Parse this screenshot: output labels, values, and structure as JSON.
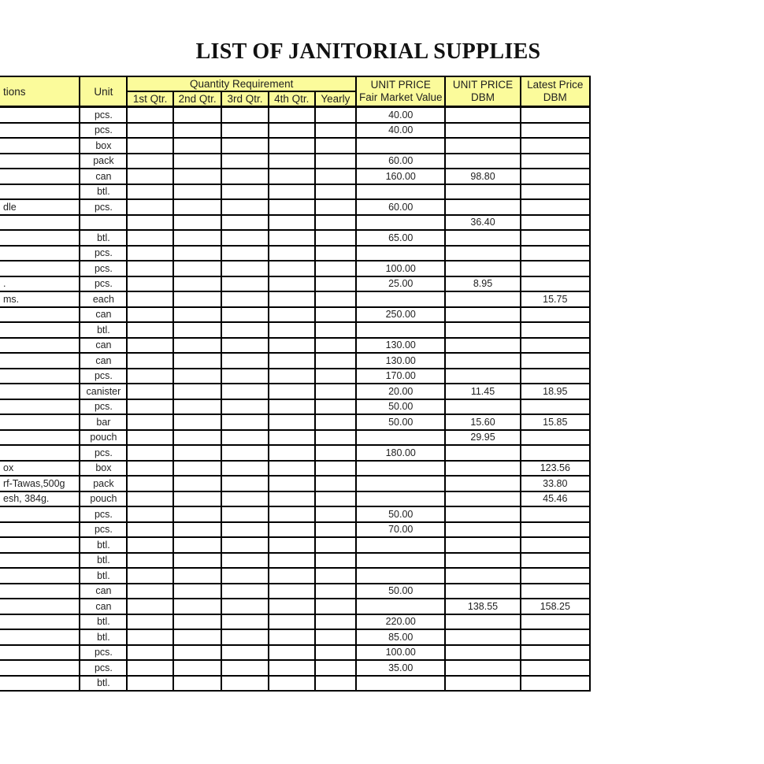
{
  "title": "LIST OF JANITORIAL SUPPLIES",
  "colors": {
    "header_bg": "#FBFB9B",
    "border": "#000000",
    "text": "#1F1F1F",
    "page_bg": "#FFFFFF"
  },
  "table": {
    "headers": {
      "descriptions_fragment": "tions",
      "unit": "Unit",
      "quantity_requirement": "Quantity Requirement",
      "quarters": [
        "1st Qtr.",
        "2nd Qtr.",
        "3rd Qtr.",
        "4th Qtr.",
        "Yearly"
      ],
      "unit_price_fmv_line1": "UNIT PRICE",
      "unit_price_fmv_line2": "Fair Market Value",
      "unit_price_dbm_line1": "UNIT PRICE",
      "unit_price_dbm_line2": "DBM",
      "latest_price_line1": "Latest Price",
      "latest_price_line2": "DBM"
    },
    "columns": [
      "desc",
      "unit",
      "q1",
      "q2",
      "q3",
      "q4",
      "yearly",
      "fmv",
      "dbm",
      "latest"
    ],
    "rows": [
      [
        "",
        "pcs.",
        "",
        "",
        "",
        "",
        "",
        "40.00",
        "",
        ""
      ],
      [
        "",
        "pcs.",
        "",
        "",
        "",
        "",
        "",
        "40.00",
        "",
        ""
      ],
      [
        "",
        "box",
        "",
        "",
        "",
        "",
        "",
        "",
        "",
        ""
      ],
      [
        "",
        "pack",
        "",
        "",
        "",
        "",
        "",
        "60.00",
        "",
        ""
      ],
      [
        "",
        "can",
        "",
        "",
        "",
        "",
        "",
        "160.00",
        "98.80",
        ""
      ],
      [
        "",
        "btl.",
        "",
        "",
        "",
        "",
        "",
        "",
        "",
        ""
      ],
      [
        "dle",
        "pcs.",
        "",
        "",
        "",
        "",
        "",
        "60.00",
        "",
        ""
      ],
      [
        "",
        "",
        "",
        "",
        "",
        "",
        "",
        "",
        "36.40",
        ""
      ],
      [
        "",
        "btl.",
        "",
        "",
        "",
        "",
        "",
        "65.00",
        "",
        ""
      ],
      [
        "",
        "pcs.",
        "",
        "",
        "",
        "",
        "",
        "",
        "",
        ""
      ],
      [
        "",
        "pcs.",
        "",
        "",
        "",
        "",
        "",
        "100.00",
        "",
        ""
      ],
      [
        ".",
        "pcs.",
        "",
        "",
        "",
        "",
        "",
        "25.00",
        "8.95",
        ""
      ],
      [
        "ms.",
        "each",
        "",
        "",
        "",
        "",
        "",
        "",
        "",
        "15.75"
      ],
      [
        "",
        "can",
        "",
        "",
        "",
        "",
        "",
        "250.00",
        "",
        ""
      ],
      [
        "",
        "btl.",
        "",
        "",
        "",
        "",
        "",
        "",
        "",
        ""
      ],
      [
        "",
        "can",
        "",
        "",
        "",
        "",
        "",
        "130.00",
        "",
        ""
      ],
      [
        "",
        "can",
        "",
        "",
        "",
        "",
        "",
        "130.00",
        "",
        ""
      ],
      [
        "",
        "pcs.",
        "",
        "",
        "",
        "",
        "",
        "170.00",
        "",
        ""
      ],
      [
        "",
        "canister",
        "",
        "",
        "",
        "",
        "",
        "20.00",
        "11.45",
        "18.95"
      ],
      [
        "",
        "pcs.",
        "",
        "",
        "",
        "",
        "",
        "50.00",
        "",
        ""
      ],
      [
        "",
        "bar",
        "",
        "",
        "",
        "",
        "",
        "50.00",
        "15.60",
        "15.85"
      ],
      [
        "",
        "pouch",
        "",
        "",
        "",
        "",
        "",
        "",
        "29.95",
        ""
      ],
      [
        "",
        "pcs.",
        "",
        "",
        "",
        "",
        "",
        "180.00",
        "",
        ""
      ],
      [
        "ox",
        "box",
        "",
        "",
        "",
        "",
        "",
        "",
        "",
        "123.56"
      ],
      [
        "rf-Tawas,500g",
        "pack",
        "",
        "",
        "",
        "",
        "",
        "",
        "",
        "33.80"
      ],
      [
        "esh, 384g.",
        "pouch",
        "",
        "",
        "",
        "",
        "",
        "",
        "",
        "45.46"
      ],
      [
        "",
        "pcs.",
        "",
        "",
        "",
        "",
        "",
        "50.00",
        "",
        ""
      ],
      [
        "",
        "pcs.",
        "",
        "",
        "",
        "",
        "",
        "70.00",
        "",
        ""
      ],
      [
        "",
        "btl.",
        "",
        "",
        "",
        "",
        "",
        "",
        "",
        ""
      ],
      [
        "",
        "btl.",
        "",
        "",
        "",
        "",
        "",
        "",
        "",
        ""
      ],
      [
        "",
        "btl.",
        "",
        "",
        "",
        "",
        "",
        "",
        "",
        ""
      ],
      [
        "",
        "can",
        "",
        "",
        "",
        "",
        "",
        "50.00",
        "",
        ""
      ],
      [
        "",
        "can",
        "",
        "",
        "",
        "",
        "",
        "",
        "138.55",
        "158.25"
      ],
      [
        "",
        "btl.",
        "",
        "",
        "",
        "",
        "",
        "220.00",
        "",
        ""
      ],
      [
        "",
        "btl.",
        "",
        "",
        "",
        "",
        "",
        "85.00",
        "",
        ""
      ],
      [
        "",
        "pcs.",
        "",
        "",
        "",
        "",
        "",
        "100.00",
        "",
        ""
      ],
      [
        "",
        "pcs.",
        "",
        "",
        "",
        "",
        "",
        "35.00",
        "",
        ""
      ],
      [
        "",
        "btl.",
        "",
        "",
        "",
        "",
        "",
        "",
        "",
        ""
      ]
    ]
  }
}
